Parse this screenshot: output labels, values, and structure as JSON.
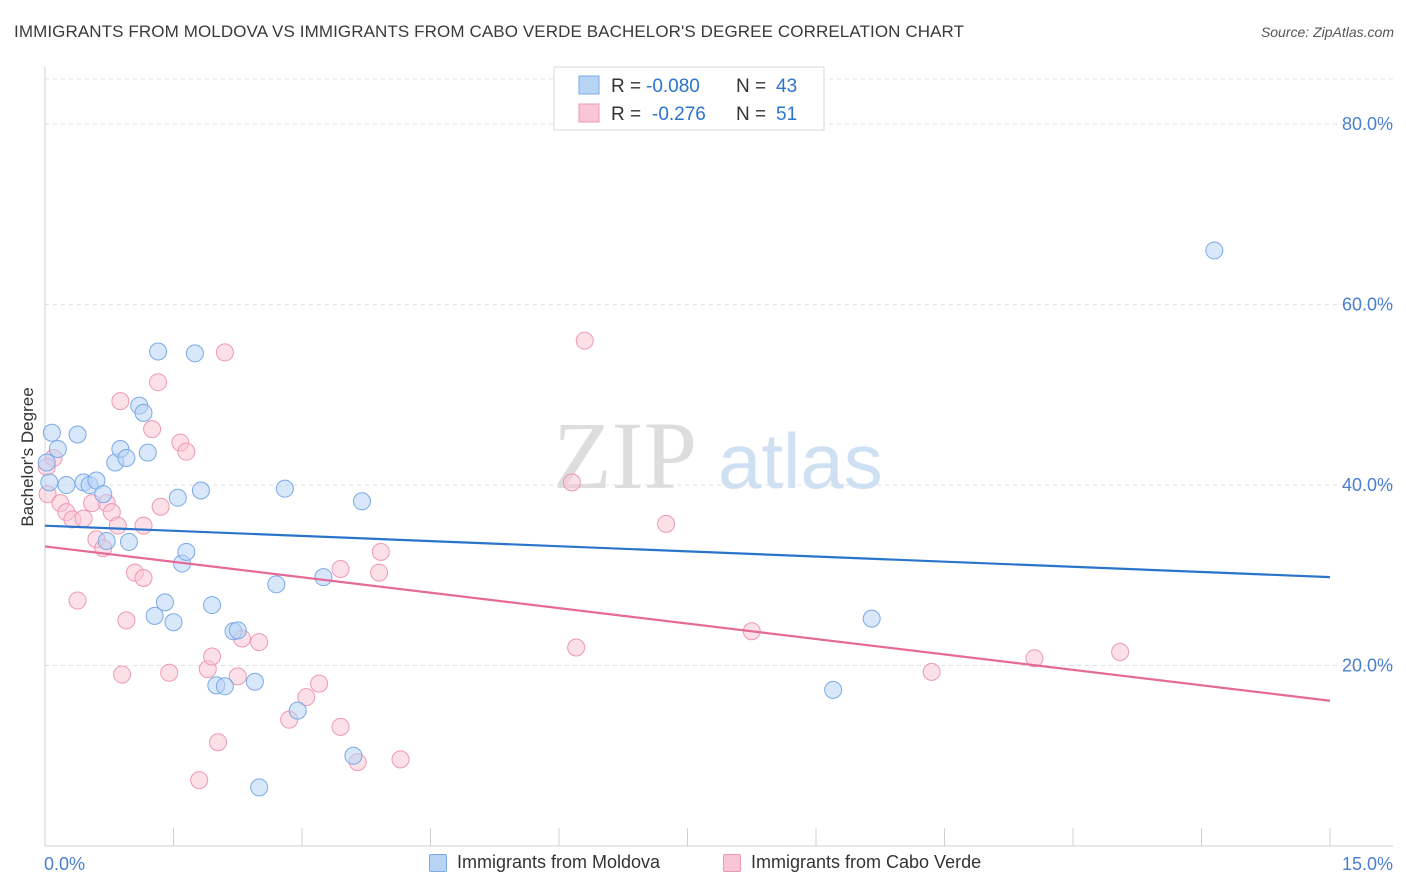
{
  "title": "IMMIGRANTS FROM MOLDOVA VS IMMIGRANTS FROM CABO VERDE BACHELOR'S DEGREE CORRELATION CHART",
  "source": "Source: ZipAtlas.com",
  "watermark": {
    "zip": "ZIP",
    "atlas": "atlas"
  },
  "colors": {
    "moldova_fill": "#b8d4f5",
    "moldova_stroke": "#7aaae6",
    "moldova_line": "#2a74cc",
    "caboverde_fill": "#f8c6d6",
    "caboverde_stroke": "#ef98b4",
    "caboverde_line": "#e56b96",
    "axis_label": "#4a7fcf",
    "grid": "#e0e0e0"
  },
  "stats_legend": [
    {
      "r_label": "R =",
      "r_value": "-0.080",
      "n_label": "N =",
      "n_value": "43"
    },
    {
      "r_label": "R =",
      "r_value": "-0.276",
      "n_label": "N =",
      "n_value": "51"
    }
  ],
  "bottom_legend": [
    {
      "label": "Immigrants from Moldova"
    },
    {
      "label": "Immigrants from Cabo Verde"
    }
  ],
  "chart_data": {
    "type": "scatter",
    "title": "IMMIGRANTS FROM MOLDOVA VS IMMIGRANTS FROM CABO VERDE BACHELOR'S DEGREE CORRELATION CHART",
    "xlabel": "",
    "ylabel": "Bachelor's Degree",
    "xlim": [
      0,
      15
    ],
    "ylim": [
      0,
      85
    ],
    "x_tick_labels": [
      "0.0%",
      "15.0%"
    ],
    "y_ticks": [
      20,
      40,
      60,
      80
    ],
    "y_tick_labels": [
      "20.0%",
      "40.0%",
      "60.0%",
      "80.0%"
    ],
    "grid": true,
    "legend_position": "top-center",
    "series": [
      {
        "name": "Immigrants from Moldova",
        "trend": {
          "x": [
            0,
            15
          ],
          "y": [
            35.5,
            29.8
          ]
        },
        "points": [
          [
            0.02,
            42.5
          ],
          [
            0.08,
            45.8
          ],
          [
            0.15,
            44.0
          ],
          [
            0.25,
            40.0
          ],
          [
            0.38,
            45.6
          ],
          [
            0.45,
            40.3
          ],
          [
            0.52,
            40.0
          ],
          [
            0.6,
            40.5
          ],
          [
            0.68,
            39.0
          ],
          [
            0.72,
            33.8
          ],
          [
            0.82,
            42.5
          ],
          [
            0.88,
            44.0
          ],
          [
            0.95,
            43.0
          ],
          [
            0.98,
            33.7
          ],
          [
            1.1,
            48.8
          ],
          [
            1.15,
            48.0
          ],
          [
            1.2,
            43.6
          ],
          [
            1.28,
            25.5
          ],
          [
            1.32,
            54.8
          ],
          [
            1.4,
            27.0
          ],
          [
            1.5,
            24.8
          ],
          [
            1.55,
            38.6
          ],
          [
            1.6,
            31.3
          ],
          [
            1.65,
            32.6
          ],
          [
            1.75,
            54.6
          ],
          [
            1.82,
            39.4
          ],
          [
            1.95,
            26.7
          ],
          [
            2.0,
            17.8
          ],
          [
            2.1,
            17.7
          ],
          [
            2.2,
            23.8
          ],
          [
            2.25,
            23.9
          ],
          [
            2.45,
            18.2
          ],
          [
            2.5,
            6.5
          ],
          [
            2.7,
            29.0
          ],
          [
            2.8,
            39.6
          ],
          [
            2.95,
            15.0
          ],
          [
            3.25,
            29.8
          ],
          [
            3.6,
            10.0
          ],
          [
            3.7,
            38.2
          ],
          [
            9.2,
            17.3
          ],
          [
            9.65,
            25.2
          ],
          [
            13.65,
            66.0
          ],
          [
            0.05,
            40.3
          ]
        ]
      },
      {
        "name": "Immigrants from Cabo Verde",
        "trend": {
          "x": [
            0,
            15
          ],
          "y": [
            33.2,
            16.1
          ]
        },
        "points": [
          [
            0.03,
            39.0
          ],
          [
            0.1,
            43.0
          ],
          [
            0.18,
            38.0
          ],
          [
            0.25,
            37.0
          ],
          [
            0.32,
            36.2
          ],
          [
            0.38,
            27.2
          ],
          [
            0.45,
            36.3
          ],
          [
            0.55,
            38.0
          ],
          [
            0.6,
            34.0
          ],
          [
            0.68,
            33.0
          ],
          [
            0.72,
            38.0
          ],
          [
            0.78,
            37.0
          ],
          [
            0.85,
            35.5
          ],
          [
            0.88,
            49.3
          ],
          [
            0.9,
            19.0
          ],
          [
            0.95,
            25.0
          ],
          [
            1.05,
            30.3
          ],
          [
            1.15,
            29.7
          ],
          [
            1.15,
            35.5
          ],
          [
            1.25,
            46.2
          ],
          [
            1.32,
            51.4
          ],
          [
            1.35,
            37.6
          ],
          [
            1.45,
            19.2
          ],
          [
            1.58,
            44.7
          ],
          [
            1.65,
            43.7
          ],
          [
            1.8,
            7.3
          ],
          [
            1.9,
            19.6
          ],
          [
            1.95,
            21.0
          ],
          [
            2.02,
            11.5
          ],
          [
            2.1,
            54.7
          ],
          [
            2.25,
            18.8
          ],
          [
            2.3,
            23.0
          ],
          [
            2.5,
            22.6
          ],
          [
            2.85,
            14.0
          ],
          [
            3.05,
            16.5
          ],
          [
            3.2,
            18.0
          ],
          [
            3.45,
            30.7
          ],
          [
            3.45,
            13.2
          ],
          [
            3.65,
            9.3
          ],
          [
            3.9,
            30.3
          ],
          [
            3.92,
            32.6
          ],
          [
            4.15,
            9.6
          ],
          [
            6.15,
            40.3
          ],
          [
            6.2,
            22.0
          ],
          [
            6.3,
            56.0
          ],
          [
            7.25,
            35.7
          ],
          [
            8.25,
            23.8
          ],
          [
            10.35,
            19.3
          ],
          [
            11.55,
            20.8
          ],
          [
            12.55,
            21.5
          ],
          [
            0.02,
            42.0
          ]
        ]
      }
    ]
  }
}
